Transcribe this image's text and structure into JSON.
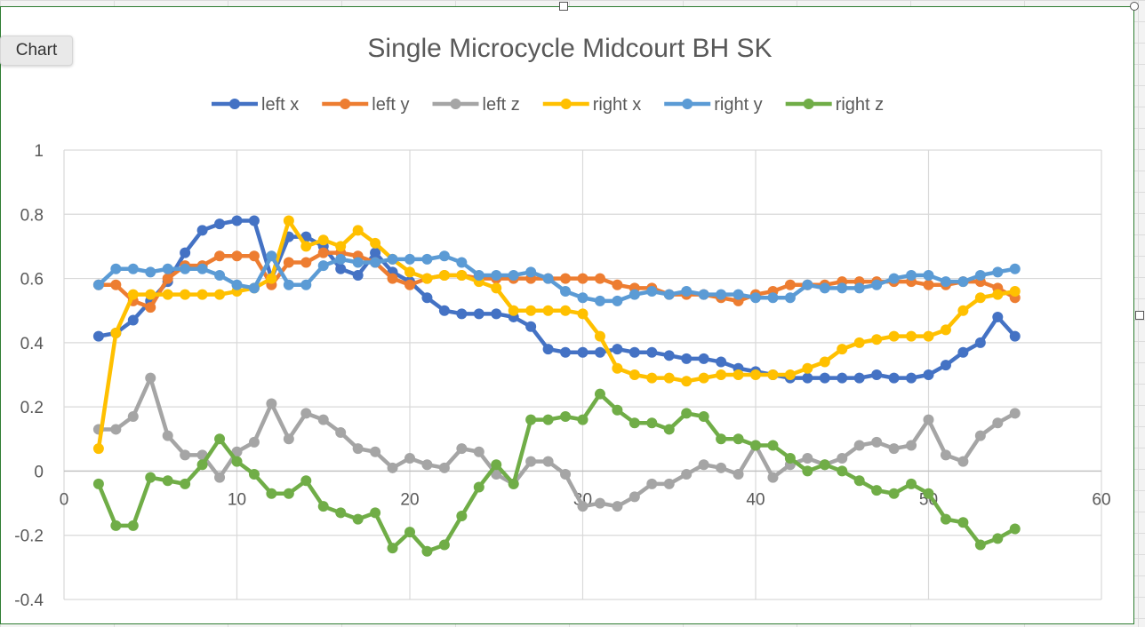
{
  "chip": {
    "label": "Chart"
  },
  "chart_data": {
    "type": "line",
    "title": "Single Microcycle Midcourt BH SK",
    "xlabel": "",
    "ylabel": "",
    "xlim": [
      0,
      60
    ],
    "ylim": [
      -0.4,
      1
    ],
    "xticks": [
      0,
      10,
      20,
      30,
      40,
      50,
      60
    ],
    "yticks": [
      1,
      0.8,
      0.6,
      0.4,
      0.2,
      0,
      -0.2,
      -0.4
    ],
    "grid": true,
    "legend_position": "top",
    "x": [
      2,
      3,
      4,
      5,
      6,
      7,
      8,
      9,
      10,
      11,
      12,
      13,
      14,
      15,
      16,
      17,
      18,
      19,
      20,
      21,
      22,
      23,
      24,
      25,
      26,
      27,
      28,
      29,
      30,
      31,
      32,
      33,
      34,
      35,
      36,
      37,
      38,
      39,
      40,
      41,
      42,
      43,
      44,
      45,
      46,
      47,
      48,
      49,
      50,
      51,
      52,
      53,
      54,
      55
    ],
    "series": [
      {
        "name": "left x",
        "color": "#4472c4",
        "values": [
          0.42,
          0.43,
          0.47,
          0.53,
          0.59,
          0.68,
          0.75,
          0.77,
          0.78,
          0.78,
          0.6,
          0.73,
          0.73,
          0.7,
          0.63,
          0.61,
          0.68,
          0.62,
          0.59,
          0.54,
          0.5,
          0.49,
          0.49,
          0.49,
          0.48,
          0.45,
          0.38,
          0.37,
          0.37,
          0.37,
          0.38,
          0.37,
          0.37,
          0.36,
          0.35,
          0.35,
          0.34,
          0.32,
          0.31,
          0.3,
          0.29,
          0.29,
          0.29,
          0.29,
          0.29,
          0.3,
          0.29,
          0.29,
          0.3,
          0.33,
          0.37,
          0.4,
          0.48,
          0.42
        ]
      },
      {
        "name": "left y",
        "color": "#ed7d31",
        "values": [
          0.58,
          0.58,
          0.53,
          0.51,
          0.6,
          0.64,
          0.64,
          0.67,
          0.67,
          0.67,
          0.58,
          0.65,
          0.65,
          0.68,
          0.68,
          0.67,
          0.65,
          0.6,
          0.58,
          0.6,
          0.61,
          0.61,
          0.6,
          0.6,
          0.6,
          0.6,
          0.6,
          0.6,
          0.6,
          0.6,
          0.58,
          0.57,
          0.57,
          0.55,
          0.55,
          0.55,
          0.54,
          0.53,
          0.55,
          0.56,
          0.58,
          0.58,
          0.58,
          0.59,
          0.59,
          0.59,
          0.59,
          0.59,
          0.58,
          0.58,
          0.59,
          0.59,
          0.57,
          0.54
        ]
      },
      {
        "name": "left z",
        "color": "#a5a5a5",
        "values": [
          0.13,
          0.13,
          0.17,
          0.29,
          0.11,
          0.05,
          0.05,
          -0.02,
          0.06,
          0.09,
          0.21,
          0.1,
          0.18,
          0.16,
          0.12,
          0.07,
          0.06,
          0.01,
          0.04,
          0.02,
          0.01,
          0.07,
          0.06,
          -0.01,
          -0.04,
          0.03,
          0.03,
          -0.01,
          -0.11,
          -0.1,
          -0.11,
          -0.08,
          -0.04,
          -0.04,
          -0.01,
          0.02,
          0.01,
          -0.01,
          0.08,
          -0.02,
          0.02,
          0.04,
          0.02,
          0.04,
          0.08,
          0.09,
          0.07,
          0.08,
          0.16,
          0.05,
          0.03,
          0.11,
          0.15,
          0.18
        ]
      },
      {
        "name": "right x",
        "color": "#ffc000",
        "values": [
          0.07,
          0.43,
          0.55,
          0.55,
          0.55,
          0.55,
          0.55,
          0.55,
          0.56,
          0.57,
          0.6,
          0.78,
          0.7,
          0.72,
          0.7,
          0.75,
          0.71,
          0.66,
          0.62,
          0.6,
          0.61,
          0.61,
          0.59,
          0.57,
          0.5,
          0.5,
          0.5,
          0.5,
          0.49,
          0.42,
          0.32,
          0.3,
          0.29,
          0.29,
          0.28,
          0.29,
          0.3,
          0.3,
          0.3,
          0.3,
          0.3,
          0.32,
          0.34,
          0.38,
          0.4,
          0.41,
          0.42,
          0.42,
          0.42,
          0.44,
          0.5,
          0.54,
          0.55,
          0.56
        ]
      },
      {
        "name": "right y",
        "color": "#5b9bd5",
        "values": [
          0.58,
          0.63,
          0.63,
          0.62,
          0.63,
          0.63,
          0.63,
          0.61,
          0.58,
          0.57,
          0.67,
          0.58,
          0.58,
          0.64,
          0.66,
          0.65,
          0.65,
          0.66,
          0.66,
          0.66,
          0.67,
          0.65,
          0.61,
          0.61,
          0.61,
          0.62,
          0.6,
          0.56,
          0.54,
          0.53,
          0.53,
          0.55,
          0.56,
          0.55,
          0.56,
          0.55,
          0.55,
          0.55,
          0.54,
          0.54,
          0.54,
          0.58,
          0.57,
          0.57,
          0.57,
          0.58,
          0.6,
          0.61,
          0.61,
          0.59,
          0.59,
          0.61,
          0.62,
          0.63
        ]
      },
      {
        "name": "right z",
        "color": "#70ad47",
        "values": [
          -0.04,
          -0.17,
          -0.17,
          -0.02,
          -0.03,
          -0.04,
          0.02,
          0.1,
          0.03,
          -0.01,
          -0.07,
          -0.07,
          -0.03,
          -0.11,
          -0.13,
          -0.15,
          -0.13,
          -0.24,
          -0.19,
          -0.25,
          -0.23,
          -0.14,
          -0.05,
          0.02,
          -0.04,
          0.16,
          0.16,
          0.17,
          0.16,
          0.24,
          0.19,
          0.15,
          0.15,
          0.13,
          0.18,
          0.17,
          0.1,
          0.1,
          0.08,
          0.08,
          0.04,
          0,
          0.02,
          0,
          -0.03,
          -0.06,
          -0.07,
          -0.04,
          -0.07,
          -0.15,
          -0.16,
          -0.23,
          -0.21,
          -0.18
        ]
      }
    ]
  }
}
